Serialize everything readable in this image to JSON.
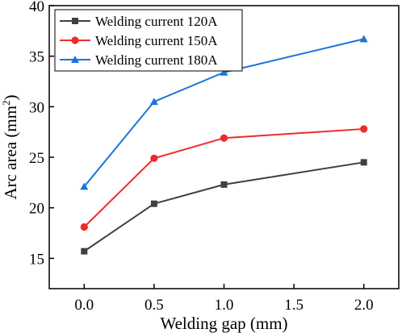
{
  "chart_data": {
    "type": "line",
    "title": "",
    "xlabel": "Welding gap (mm)",
    "ylabel_main": "Arc area (mm",
    "ylabel_sup": "2",
    "ylabel_tail": ")",
    "xlim": [
      -0.25,
      2.25
    ],
    "ylim": [
      12,
      40
    ],
    "xticks": [
      0.0,
      0.5,
      1.0,
      1.5,
      2.0
    ],
    "xtick_labels": [
      "0.0",
      "0.5",
      "1.0",
      "1.5",
      "2.0"
    ],
    "yticks": [
      15,
      20,
      25,
      30,
      35,
      40
    ],
    "ytick_labels": [
      "15",
      "20",
      "25",
      "30",
      "35",
      "40"
    ],
    "x": [
      0.0,
      0.5,
      1.0,
      2.0
    ],
    "grid": false,
    "legend_position": "top-left",
    "series": [
      {
        "name": "Welding current 120A",
        "values": [
          15.7,
          20.4,
          22.3,
          24.5
        ],
        "color": "#404040",
        "marker": "square"
      },
      {
        "name": "Welding current 150A",
        "values": [
          18.1,
          24.9,
          26.9,
          27.8
        ],
        "color": "#ee2a2a",
        "marker": "circle"
      },
      {
        "name": "Welding current 180A",
        "values": [
          22.1,
          30.5,
          33.4,
          36.7
        ],
        "color": "#1c74d8",
        "marker": "triangle"
      }
    ]
  }
}
